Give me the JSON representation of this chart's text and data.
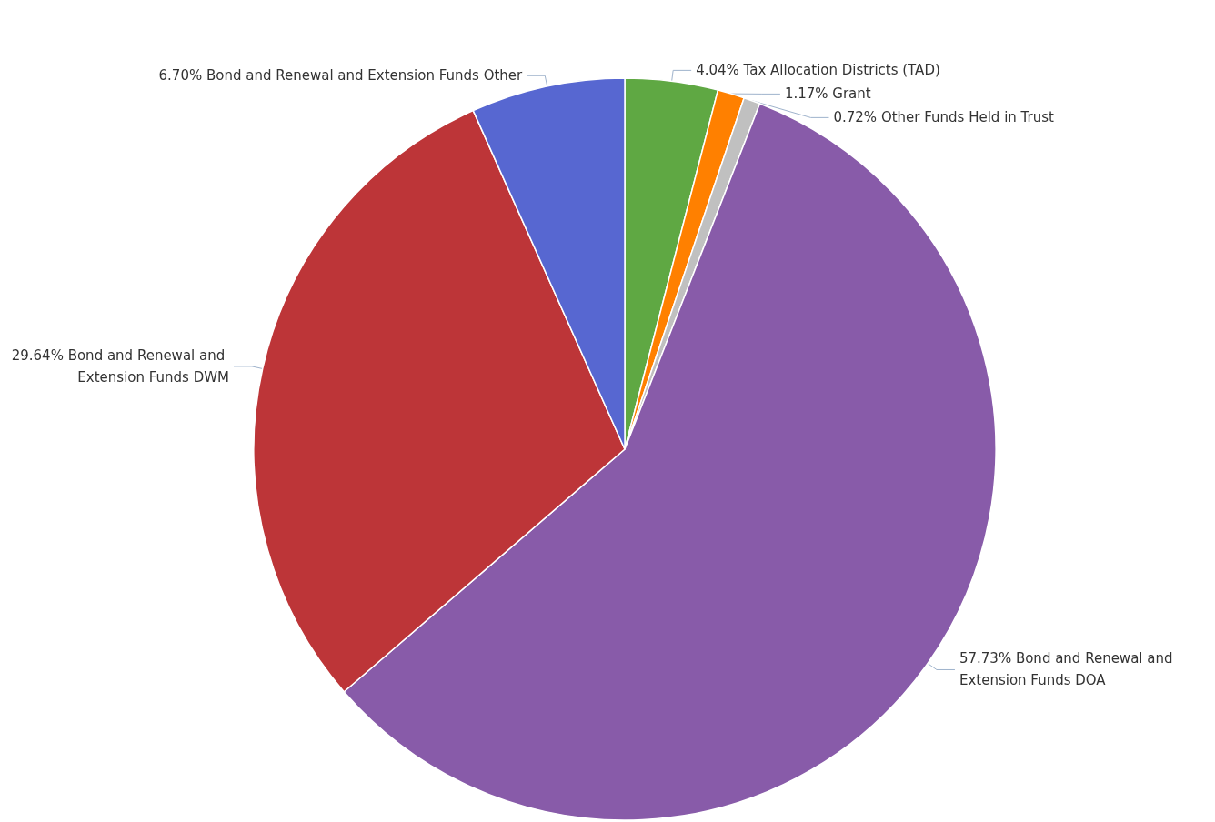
{
  "chart_data": {
    "type": "pie",
    "categories": [
      "Tax Allocation Districts (TAD)",
      "Grant",
      "Other Funds Held in Trust",
      "Bond and Renewal and Extension Funds DOA",
      "Bond and Renewal and Extension Funds DWM",
      "Bond and Renewal and Extension Funds Other"
    ],
    "values": [
      4.04,
      1.17,
      0.72,
      57.73,
      29.64,
      6.7
    ],
    "value_labels": [
      "4.04%",
      "1.17%",
      "0.72%",
      "57.73%",
      "29.64%",
      "6.70%"
    ],
    "colors": [
      "#5fa843",
      "#ff8000",
      "#c0c0c0",
      "#885ba9",
      "#bd3538",
      "#5767d1"
    ],
    "legend": false
  }
}
